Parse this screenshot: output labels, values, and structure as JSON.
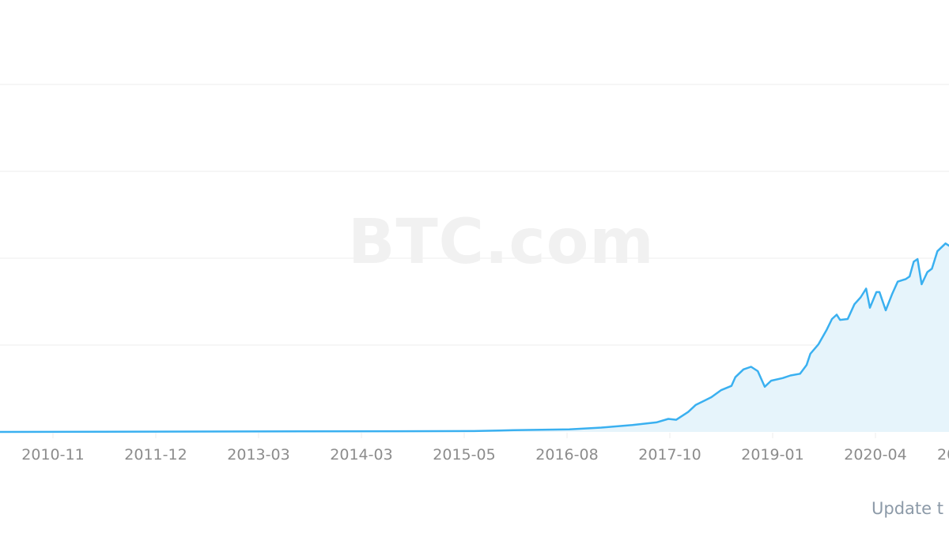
{
  "watermark": "BTC.com",
  "footer_text": "Update t",
  "colors": {
    "line": "#3ab0f0",
    "area": "#e6f4fb",
    "grid": "#eeeeee",
    "tick_text": "#8c8c8c"
  },
  "chart_data": {
    "type": "area",
    "title": "",
    "xlabel": "",
    "ylabel": "",
    "grid": true,
    "y_tick_labels_visible": false,
    "x_ticks": [
      "2010-11",
      "2011-12",
      "2013-03",
      "2014-03",
      "2015-05",
      "2016-08",
      "2017-10",
      "2019-01",
      "2020-04",
      "20"
    ],
    "ylim": [
      0,
      5
    ],
    "y_gridlines": [
      1,
      2,
      3,
      4
    ],
    "series": [
      {
        "x": [
          "2010-03-22",
          "2015-08-28",
          "2016-02-11",
          "2016-09-29",
          "2017-02-10",
          "2017-06-20",
          "2017-09-28",
          "2017-11-17",
          "2017-12-20",
          "2018-02-08",
          "2018-03-11",
          "2018-05-16",
          "2018-06-25",
          "2018-08-08",
          "2018-08-24",
          "2018-09-27",
          "2018-10-29",
          "2018-11-26",
          "2018-12-25",
          "2019-01-21",
          "2019-03-10",
          "2019-04-12",
          "2019-05-22",
          "2019-06-18",
          "2019-07-04",
          "2019-08-07",
          "2019-09-09",
          "2019-10-02",
          "2019-10-22",
          "2019-11-05",
          "2019-12-07",
          "2020-01-04",
          "2020-01-30",
          "2020-02-22",
          "2020-03-09",
          "2020-04-05",
          "2020-04-18",
          "2020-05-14",
          "2020-06-10",
          "2020-07-03",
          "2020-08-06",
          "2020-08-22",
          "2020-09-08",
          "2020-09-24",
          "2020-10-11",
          "2020-11-04",
          "2020-11-23",
          "2020-12-16",
          "2021-01-19",
          "2021-02-05"
        ],
        "y": [
          0,
          0.01,
          0.02,
          0.03,
          0.05,
          0.08,
          0.11,
          0.15,
          0.14,
          0.23,
          0.31,
          0.4,
          0.48,
          0.53,
          0.63,
          0.72,
          0.75,
          0.7,
          0.52,
          0.59,
          0.62,
          0.65,
          0.67,
          0.77,
          0.9,
          1.01,
          1.17,
          1.3,
          1.35,
          1.29,
          1.3,
          1.47,
          1.55,
          1.65,
          1.43,
          1.61,
          1.61,
          1.4,
          1.59,
          1.73,
          1.76,
          1.79,
          1.96,
          1.99,
          1.7,
          1.84,
          1.88,
          2.08,
          2.17,
          2.14
        ]
      }
    ]
  }
}
